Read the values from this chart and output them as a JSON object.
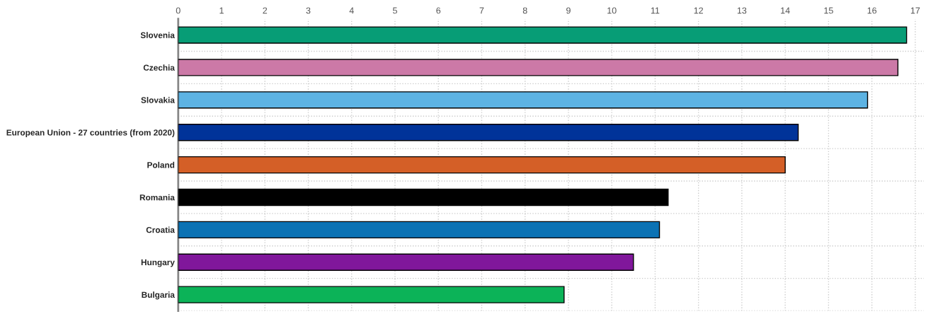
{
  "chart_data": {
    "type": "bar",
    "orientation": "horizontal",
    "categories": [
      "Slovenia",
      "Czechia",
      "Slovakia",
      "European Union - 27 countries (from 2020)",
      "Poland",
      "Romania",
      "Croatia",
      "Hungary",
      "Bulgaria"
    ],
    "values": [
      16.8,
      16.6,
      15.9,
      14.3,
      14.0,
      11.3,
      11.1,
      10.5,
      8.9
    ],
    "colors": [
      "#079d76",
      "#cc79a7",
      "#5db3e3",
      "#003399",
      "#d45f27",
      "#000000",
      "#0b72b4",
      "#80179b",
      "#0cb358"
    ],
    "xlim": [
      0,
      17.2
    ],
    "xticks": [
      0,
      1,
      2,
      3,
      4,
      5,
      6,
      7,
      8,
      9,
      10,
      11,
      12,
      13,
      14,
      15,
      16,
      17
    ],
    "grid": true,
    "legend": false
  }
}
